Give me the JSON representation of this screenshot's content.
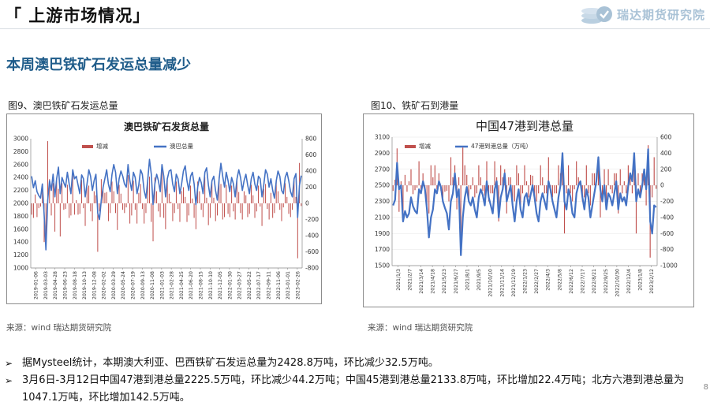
{
  "header": {
    "title": "「 上游市场情况」",
    "brand": "瑞达期货研究院"
  },
  "subheading": "本周澳巴铁矿石发运总量减少",
  "figures": {
    "fig1_caption": "图9、澳巴铁矿石发运总量",
    "fig2_caption": "图10、铁矿石到港量",
    "fig1_source": "来源：wind   瑞达期货研究院",
    "fig2_source": "来源：wind   瑞达期货研究院"
  },
  "bullets": [
    "据Mysteel统计，本期澳大利亚、巴西铁矿石发运总量为2428.8万吨，环比减少32.5万吨。",
    "3月6日-3月12日中国47港到港总量2225.5万吨，环比减少44.2万吨；中国45港到港总量2133.8万吨，环比增加22.4万吨；北方六港到港总量为1047.1万吨，环比增加142.5万吨。"
  ],
  "page_number": "8",
  "colors": {
    "line": "#4472c4",
    "bar": "#c0504d",
    "heading": "#1f5c8a"
  },
  "chart_data": [
    {
      "type": "line+bar",
      "title": "澳巴铁矿石发货总量",
      "legend": [
        "增减",
        "澳巴总量"
      ],
      "legend_position": "top",
      "x_tick_labels": [
        "2019-01-06",
        "2019-03-03",
        "2019-04-28",
        "2019-06-23",
        "2019-08-18",
        "2019-10-13",
        "2019-12-08",
        "2020-02-02",
        "2020-03-29",
        "2020-05-24",
        "2020-07-19",
        "2020-09-13",
        "2020-11-08",
        "2021-01-03",
        "2021-02-28",
        "2021-04-25",
        "2021-06-20",
        "2021-08-15",
        "2021-10-10",
        "2021-12-05",
        "2022-01-30",
        "2022-03-27",
        "2022-05-22",
        "2022-07-17",
        "2022-09-11",
        "2022-11-06",
        "2023-01-01",
        "2023-02-26"
      ],
      "left_axis": {
        "ylim": [
          1000,
          3000
        ],
        "ticks": [
          1000,
          1200,
          1400,
          1600,
          1800,
          2000,
          2200,
          2400,
          2600,
          2800,
          3000
        ]
      },
      "right_axis": {
        "ylim": [
          -800,
          800
        ],
        "ticks": [
          -800,
          -600,
          -400,
          -200,
          0,
          200,
          400,
          600,
          800
        ]
      },
      "series": [
        {
          "name": "澳巴总量",
          "axis": "left",
          "values": [
            2420,
            2240,
            2350,
            2180,
            2120,
            2080,
            2300,
            1820,
            1280,
            2050,
            2350,
            2200,
            2450,
            2100,
            2380,
            2560,
            2150,
            2400,
            2320,
            2250,
            2480,
            2300,
            2150,
            2520,
            2380,
            2420,
            2280,
            2150,
            2440,
            2380,
            2100,
            2300,
            2520,
            2420,
            2200,
            2350,
            2450,
            1850,
            1750,
            2050,
            2250,
            2380,
            2520,
            2300,
            2180,
            2450,
            2600,
            2480,
            2150,
            2380,
            2500,
            2420,
            2300,
            2250,
            2600,
            2350,
            2200,
            2480,
            2400,
            2150,
            2280,
            2520,
            2450,
            2200,
            2080,
            2350,
            2680,
            2450,
            1980,
            2300,
            2450,
            2350,
            2180,
            2600,
            2420,
            2100,
            2380,
            2500,
            2520,
            2300,
            2180,
            2450,
            2380,
            2150,
            2300,
            2500,
            2580,
            2350,
            2200,
            2420,
            2480,
            2300,
            1980,
            2250,
            2400,
            2320,
            2150,
            2480,
            2550,
            2280,
            2100,
            2350,
            2420,
            2200,
            2050,
            2380,
            2620,
            2420,
            2250,
            2480,
            2350,
            2180,
            2400,
            2300,
            2100,
            2380,
            2520,
            2400,
            2200,
            2350,
            2450,
            2280,
            2150,
            2380,
            2480,
            2300,
            2200,
            2420,
            2380,
            2100,
            2280,
            2520,
            2450,
            2250,
            2380,
            2200,
            2080,
            2350,
            2500,
            2420,
            2200,
            2150,
            2400,
            2480,
            2350,
            2180,
            2100,
            2380,
            2460,
            1780,
            2280,
            2429
          ]
        },
        {
          "name": "增减",
          "axis": "right",
          "values": [
            -140,
            -180,
            110,
            -170,
            -60,
            -40,
            220,
            -480,
            -540,
            770,
            300,
            -150,
            250,
            -350,
            280,
            180,
            -410,
            250,
            -80,
            -70,
            230,
            -180,
            -150,
            370,
            -140,
            40,
            -140,
            -130,
            290,
            -60,
            -280,
            200,
            220,
            -100,
            -220,
            150,
            100,
            -600,
            -100,
            300,
            200,
            130,
            140,
            -220,
            -120,
            270,
            150,
            -120,
            -330,
            230,
            120,
            -80,
            -120,
            -50,
            350,
            -250,
            -150,
            280,
            -80,
            -250,
            130,
            240,
            -70,
            -250,
            -120,
            270,
            330,
            -230,
            -470,
            320,
            150,
            -100,
            -170,
            420,
            -180,
            -320,
            280,
            120,
            20,
            -220,
            -120,
            270,
            -70,
            -230,
            150,
            200,
            80,
            -230,
            -150,
            220,
            60,
            -180,
            -320,
            270,
            150,
            -80,
            -170,
            330,
            70,
            -270,
            -180,
            250,
            70,
            -220,
            -150,
            330,
            240,
            -200,
            -170,
            230,
            -130,
            -170,
            220,
            -100,
            -200,
            280,
            140,
            -120,
            -200,
            150,
            100,
            -170,
            -130,
            230,
            100,
            -180,
            -100,
            220,
            -40,
            -280,
            180,
            240,
            -70,
            -200,
            130,
            -180,
            -120,
            270,
            150,
            -80,
            -220,
            -50,
            250,
            80,
            -130,
            -170,
            -80,
            280,
            80,
            -680,
            500,
            -33
          ]
        }
      ]
    },
    {
      "type": "line+bar",
      "title": "中国47港到港总量",
      "legend": [
        "增减",
        "47港到港总量（万吨）"
      ],
      "legend_position": "top",
      "x_tick_labels": [
        "2021/1/3",
        "2021/2/7",
        "2021/3/14",
        "2021/4/18",
        "2021/5/23",
        "2021/6/27",
        "2021/8/1",
        "2021/9/5",
        "2021/10/10",
        "2021/11/14",
        "2021/12/19",
        "2022/1/23",
        "2022/2/27",
        "2022/4/3",
        "2022/5/8",
        "2022/6/12",
        "2022/7/17",
        "2022/8/21",
        "2022/9/25",
        "2022/10/30",
        "2022/12/4",
        "2023/1/8",
        "2023/2/12"
      ],
      "left_axis": {
        "ylim": [
          1500,
          3100
        ],
        "ticks": [
          1500,
          1700,
          1900,
          2100,
          2300,
          2500,
          2700,
          2900,
          3100
        ]
      },
      "right_axis": {
        "ylim": [
          -1000,
          600
        ],
        "ticks": [
          -1000,
          -800,
          -600,
          -400,
          -200,
          0,
          200,
          400,
          600
        ]
      },
      "series": [
        {
          "name": "47港到港总量（万吨）",
          "axis": "left",
          "values": [
            2250,
            2320,
            2780,
            2450,
            2500,
            2050,
            2180,
            2100,
            2150,
            2350,
            2240,
            2180,
            2150,
            2450,
            2400,
            2550,
            2450,
            2200,
            1850,
            2100,
            2200,
            2450,
            2400,
            2550,
            2480,
            2300,
            2220,
            2150,
            1950,
            2300,
            2400,
            2650,
            2350,
            2450,
            1630,
            2100,
            2350,
            2480,
            2300,
            2250,
            2350,
            2200,
            2100,
            2350,
            2450,
            2380,
            2250,
            2550,
            2350,
            2250,
            2150,
            2450,
            2550,
            2100,
            2350,
            2450,
            2650,
            2300,
            2400,
            2500,
            2250,
            2050,
            2300,
            2450,
            2200,
            2100,
            2350,
            2400,
            2250,
            2380,
            2500,
            2350,
            2150,
            2050,
            2300,
            2400,
            2300,
            2200,
            2550,
            2450,
            2300,
            2200,
            2100,
            2350,
            2500,
            2900,
            2300,
            2200,
            2450,
            2350,
            2150,
            2100,
            2400,
            2500,
            2550,
            2350,
            2200,
            2450,
            2350,
            2100,
            2250,
            2400,
            2550,
            2850,
            2450,
            2300,
            2500,
            2200,
            2400,
            2350,
            2250,
            2400,
            2550,
            2200,
            2400,
            2300,
            2350,
            2250,
            2500,
            2650,
            2550,
            2900,
            2300,
            2450,
            2350,
            2500,
            2700,
            2450,
            2950,
            2050,
            1900,
            2250,
            2226
          ]
        },
        {
          "name": "增减",
          "axis": "right",
          "values": [
            -70,
            70,
            460,
            -330,
            50,
            -450,
            130,
            -80,
            50,
            200,
            -110,
            -60,
            -30,
            300,
            -50,
            150,
            -100,
            -250,
            -350,
            250,
            100,
            250,
            -50,
            150,
            -70,
            -180,
            -80,
            -70,
            -200,
            350,
            100,
            250,
            -300,
            100,
            -820,
            470,
            250,
            130,
            -180,
            -50,
            100,
            -150,
            -100,
            250,
            100,
            -70,
            -130,
            300,
            -200,
            -100,
            -100,
            300,
            100,
            -450,
            250,
            100,
            200,
            -350,
            100,
            100,
            -250,
            -200,
            250,
            150,
            -250,
            -100,
            250,
            50,
            -150,
            130,
            120,
            -150,
            -200,
            -100,
            250,
            100,
            -100,
            -100,
            350,
            -100,
            -150,
            -100,
            -100,
            250,
            150,
            400,
            -600,
            -100,
            250,
            -100,
            -200,
            -50,
            300,
            100,
            50,
            -200,
            -150,
            250,
            -100,
            -250,
            150,
            150,
            150,
            300,
            -400,
            -150,
            200,
            -300,
            200,
            -50,
            -100,
            150,
            150,
            -350,
            200,
            -100,
            50,
            -100,
            250,
            150,
            -100,
            350,
            -600,
            150,
            -100,
            150,
            200,
            -250,
            500,
            -900,
            -150,
            350,
            -44
          ]
        }
      ]
    }
  ]
}
